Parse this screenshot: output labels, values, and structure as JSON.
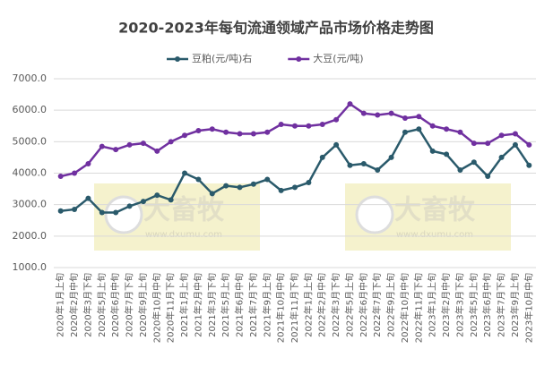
{
  "chart_data": {
    "type": "line",
    "title": "2020-2023年每旬流通领域产品市场价格走势图",
    "categories": [
      "2020年1月上旬",
      "2020年2月中旬",
      "2020年3月下旬",
      "2020年5月上旬",
      "2020年6月中旬",
      "2020年7月下旬",
      "2020年9月上旬",
      "2020年10月中旬",
      "2020年11月下旬",
      "2021年1月上旬",
      "2021年2月中旬",
      "2021年3月下旬",
      "2021年5月上旬",
      "2021年6月中旬",
      "2021年7月下旬",
      "2021年9月上旬",
      "2021年10月中旬",
      "2021年11月下旬",
      "2022年1月上旬",
      "2022年2月中旬",
      "2022年3月下旬",
      "2022年5月上旬",
      "2022年6月中旬",
      "2022年7月下旬",
      "2022年9月上旬",
      "2022年10月中旬",
      "2022年11月下旬",
      "2023年1月上旬",
      "2023年2月中旬",
      "2023年3月下旬",
      "2023年5月上旬",
      "2023年6月中旬",
      "2023年7月下旬",
      "2023年9月上旬",
      "2023年10月中旬"
    ],
    "series": [
      {
        "name": "豆粕(元/吨)右",
        "color": "#2a5a6b",
        "values": [
          2800,
          2850,
          3200,
          2750,
          2750,
          2950,
          3100,
          3300,
          3150,
          4000,
          3800,
          3350,
          3600,
          3550,
          3650,
          3800,
          3450,
          3550,
          3700,
          4500,
          4900,
          4250,
          4300,
          4100,
          4500,
          5300,
          5400,
          4700,
          4600,
          4100,
          4350,
          3900,
          4500,
          4900,
          4250
        ]
      },
      {
        "name": "大豆(元/吨)",
        "color": "#7030a0",
        "values": [
          3900,
          4000,
          4300,
          4850,
          4750,
          4900,
          4950,
          4700,
          5000,
          5200,
          5350,
          5400,
          5300,
          5250,
          5250,
          5300,
          5550,
          5500,
          5500,
          5550,
          5700,
          6200,
          5900,
          5850,
          5900,
          5750,
          5800,
          5500,
          5400,
          5300,
          4950,
          4950,
          5200,
          5250,
          4900
        ]
      }
    ],
    "ylim": [
      1000,
      7000
    ],
    "yticks": [
      {
        "value": 1000,
        "label": "1000.0"
      },
      {
        "value": 2000,
        "label": "2000.0"
      },
      {
        "value": 3000,
        "label": "3000.0"
      },
      {
        "value": 4000,
        "label": "4000.0"
      },
      {
        "value": 5000,
        "label": "5000.0"
      },
      {
        "value": 6000,
        "label": "6000.0"
      },
      {
        "value": 7000,
        "label": "7000.0"
      }
    ],
    "grid": true,
    "legend": "top",
    "watermark": [
      "大畜牧",
      "www.dxumu.com"
    ]
  }
}
